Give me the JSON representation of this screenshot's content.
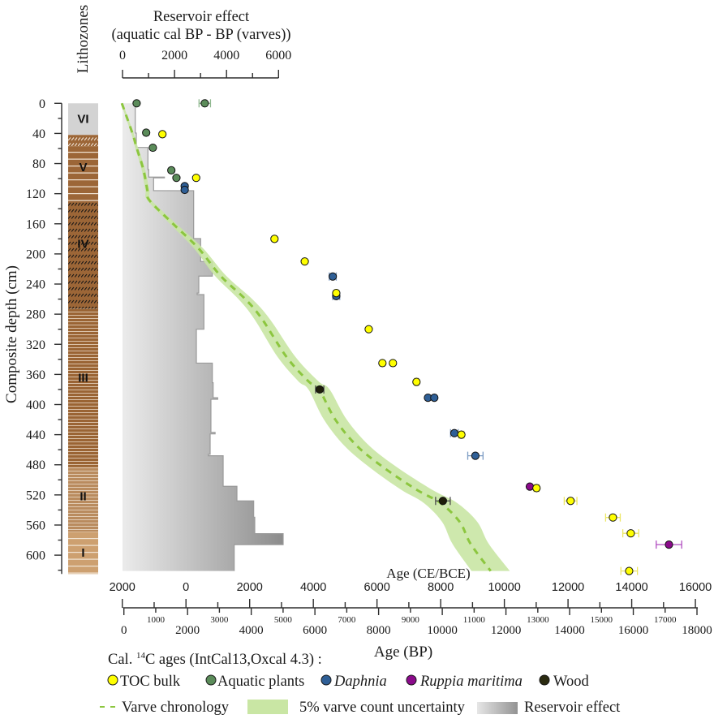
{
  "legend": {
    "heading_prefix": "Cal. ",
    "heading_sup": "14",
    "heading_suffix": "C ages (IntCal13,Oxcal 4.3) :",
    "varve_label": "Varve chronology",
    "uncertainty_label": "5% varve count uncertainty",
    "reservoir_label": "Reservoir effect"
  },
  "chart_data": {
    "type": "scatter",
    "title": "",
    "lithozones_title": "Lithozones",
    "xlabel": "Age (BP)",
    "ylabel": "Composite depth (cm)",
    "xlim": [
      0,
      18000
    ],
    "ylim": [
      625,
      0
    ],
    "grid": false,
    "x_tick_labels_major": [
      "0",
      "2000",
      "4000",
      "6000",
      "8000",
      "10000",
      "12000",
      "14000",
      "16000",
      "18000"
    ],
    "x_tick_labels_minor": [
      "1000",
      "3000",
      "5000",
      "7000",
      "9000",
      "11000",
      "13000",
      "15000",
      "17000"
    ],
    "y_tick_labels": [
      "0",
      "40",
      "80",
      "120",
      "160",
      "200",
      "240",
      "280",
      "320",
      "360",
      "400",
      "440",
      "480",
      "520",
      "560",
      "600"
    ],
    "secondary_x": {
      "label": "Age (CE/BCE)",
      "ticks": [
        {
          "label": "2000",
          "bp": -50
        },
        {
          "label": "0",
          "bp": 1950
        },
        {
          "label": "2000",
          "bp": 3950
        },
        {
          "label": "4000",
          "bp": 5950
        },
        {
          "label": "6000",
          "bp": 7950
        },
        {
          "label": "8000",
          "bp": 9950
        },
        {
          "label": "10000",
          "bp": 11950
        },
        {
          "label": "12000",
          "bp": 13950
        },
        {
          "label": "14000",
          "bp": 15950
        },
        {
          "label": "16000",
          "bp": 17950
        }
      ]
    },
    "reservoir_axis": {
      "title": "Reservoir effect",
      "subtitle": "(aquatic cal BP - BP (varves))",
      "range": [
        0,
        6000
      ],
      "tick_labels": [
        "0",
        "2000",
        "4000",
        "6000"
      ]
    },
    "series": [
      {
        "name": "TOC bulk",
        "color": "#ffff00",
        "err_color": "#ece766",
        "italic": false,
        "points": [
          {
            "bp": 1210,
            "depth": 41
          },
          {
            "bp": 2270,
            "depth": 99
          },
          {
            "bp": 4730,
            "depth": 180
          },
          {
            "bp": 5680,
            "depth": 210
          },
          {
            "bp": 6670,
            "depth": 252
          },
          {
            "bp": 7690,
            "depth": 300
          },
          {
            "bp": 8120,
            "depth": 345
          },
          {
            "bp": 8450,
            "depth": 345
          },
          {
            "bp": 9190,
            "depth": 370,
            "err": 60
          },
          {
            "bp": 10600,
            "depth": 440,
            "err": 80
          },
          {
            "bp": 12960,
            "depth": 511,
            "err": 80
          },
          {
            "bp": 14030,
            "depth": 528,
            "err": 200
          },
          {
            "bp": 15360,
            "depth": 550,
            "err": 230
          },
          {
            "bp": 15920,
            "depth": 571,
            "err": 250
          },
          {
            "bp": 15870,
            "depth": 621,
            "err": 260
          }
        ]
      },
      {
        "name": "Aquatic plants",
        "color": "#5b8c5a",
        "err_color": "#8fb88f",
        "italic": false,
        "points": [
          {
            "bp": 400,
            "depth": 0
          },
          {
            "bp": 2540,
            "depth": 0,
            "err": 180
          },
          {
            "bp": 700,
            "depth": 39
          },
          {
            "bp": 910,
            "depth": 59
          },
          {
            "bp": 1490,
            "depth": 89
          },
          {
            "bp": 1650,
            "depth": 99
          }
        ]
      },
      {
        "name": "Daphnia",
        "color": "#2f5f96",
        "err_color": "#7d9cc4",
        "italic": true,
        "points": [
          {
            "bp": 1910,
            "depth": 110
          },
          {
            "bp": 1910,
            "depth": 115
          },
          {
            "bp": 6560,
            "depth": 230,
            "err": 110
          },
          {
            "bp": 6670,
            "depth": 256,
            "err": 110
          },
          {
            "bp": 9550,
            "depth": 391
          },
          {
            "bp": 9750,
            "depth": 391
          },
          {
            "bp": 10380,
            "depth": 438,
            "err": 120
          },
          {
            "bp": 11040,
            "depth": 468,
            "err": 240
          }
        ]
      },
      {
        "name": "Ruppia maritima",
        "color": "#8b0a8b",
        "err_color": "#b04cc0",
        "italic": true,
        "points": [
          {
            "bp": 12750,
            "depth": 509
          },
          {
            "bp": 17120,
            "depth": 586,
            "err": 400
          }
        ]
      },
      {
        "name": "Wood",
        "color": "#1e1e0a",
        "err_color": "#4a4a4a",
        "italic": false,
        "points": [
          {
            "bp": 6150,
            "depth": 380,
            "err": 130
          },
          {
            "bp": 10020,
            "depth": 528,
            "err": 230
          }
        ]
      }
    ],
    "varve_chronology": {
      "name": "Varve chronology",
      "color": "#8cc63f",
      "uncertainty_pct": 5,
      "uncertainty_color": "#c9e6a4",
      "points": [
        [
          0,
          -65
        ],
        [
          40,
          270
        ],
        [
          59,
          400
        ],
        [
          88,
          612
        ],
        [
          116,
          739
        ],
        [
          129,
          806
        ],
        [
          160,
          1545
        ],
        [
          193,
          2352
        ],
        [
          229,
          3033
        ],
        [
          261,
          3838
        ],
        [
          287,
          4348
        ],
        [
          337,
          5112
        ],
        [
          369,
          5792
        ],
        [
          380,
          6131
        ],
        [
          420,
          6641
        ],
        [
          455,
          7322
        ],
        [
          484,
          8170
        ],
        [
          513,
          9190
        ],
        [
          531,
          9954
        ],
        [
          556,
          10550
        ],
        [
          585,
          10890
        ],
        [
          621,
          11520
        ]
      ]
    },
    "reservoir_effect": {
      "name": "Reservoir effect",
      "gradient": [
        "#ebebeb",
        "#8c8c8c"
      ],
      "steps": [
        {
          "top": 0,
          "bottom": 39.5,
          "value": 490
        },
        {
          "top": 39.5,
          "bottom": 58.6,
          "value": 530
        },
        {
          "top": 58.6,
          "bottom": 88,
          "value": 977
        },
        {
          "top": 88,
          "bottom": 98,
          "value": 1008
        },
        {
          "top": 98,
          "bottom": 99,
          "value": 1613
        },
        {
          "top": 99,
          "bottom": 116,
          "value": 1195
        },
        {
          "top": 116,
          "bottom": 179.6,
          "value": 2736
        },
        {
          "top": 179.6,
          "bottom": 210,
          "value": 3005
        },
        {
          "top": 210,
          "bottom": 229.5,
          "value": 3454
        },
        {
          "top": 229.5,
          "bottom": 252,
          "value": 2933
        },
        {
          "top": 252,
          "bottom": 254,
          "value": 2870
        },
        {
          "top": 254,
          "bottom": 300,
          "value": 3130
        },
        {
          "top": 300,
          "bottom": 345,
          "value": 2840
        },
        {
          "top": 345,
          "bottom": 371,
          "value": 3454
        },
        {
          "top": 371,
          "bottom": 391,
          "value": 3485
        },
        {
          "top": 391,
          "bottom": 393,
          "value": 3660
        },
        {
          "top": 393,
          "bottom": 437,
          "value": 3400
        },
        {
          "top": 437,
          "bottom": 439,
          "value": 3560
        },
        {
          "top": 439,
          "bottom": 466,
          "value": 3370
        },
        {
          "top": 466,
          "bottom": 468,
          "value": 3300
        },
        {
          "top": 468,
          "bottom": 508.6,
          "value": 3870
        },
        {
          "top": 508.6,
          "bottom": 528,
          "value": 4400
        },
        {
          "top": 528,
          "bottom": 549.6,
          "value": 5044
        },
        {
          "top": 549.6,
          "bottom": 571.5,
          "value": 5085
        },
        {
          "top": 571.5,
          "bottom": 586,
          "value": 6177
        },
        {
          "top": 586,
          "bottom": 621,
          "value": 4295
        }
      ]
    },
    "lithology_bands": [
      {
        "top": 0,
        "bottom": 42,
        "color": "#d3d3d3",
        "texture": "plain"
      },
      {
        "top": 42,
        "bottom": 57,
        "color": "#9c6637",
        "texture": "white-hatch"
      },
      {
        "top": 57,
        "bottom": 130,
        "color": "#9c6637",
        "texture": "white-lines"
      },
      {
        "top": 130,
        "bottom": 273,
        "color": "#9c6637",
        "texture": "black-hatch"
      },
      {
        "top": 273,
        "bottom": 483,
        "color": "#9a6434",
        "texture": "fine-lines"
      },
      {
        "top": 483,
        "bottom": 569,
        "color": "#b98b5e",
        "texture": "fine-lines"
      },
      {
        "top": 569,
        "bottom": 625,
        "color": "#cda070",
        "texture": "white-lines"
      }
    ],
    "lithozones": [
      {
        "label": "VI",
        "center": 20
      },
      {
        "label": "V",
        "center": 84
      },
      {
        "label": "IV",
        "center": 186
      },
      {
        "label": "III",
        "center": 364
      },
      {
        "label": "II",
        "center": 521
      },
      {
        "label": "I",
        "center": 596
      }
    ]
  }
}
